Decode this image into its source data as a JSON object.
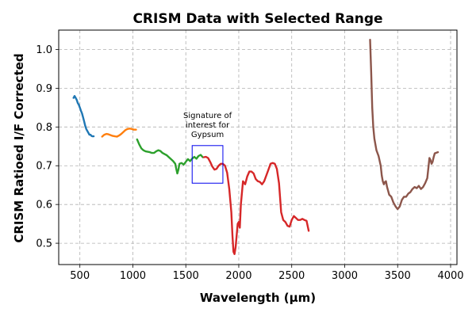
{
  "chart_data": {
    "type": "line",
    "title": "CRISM Data with Selected Range",
    "xlabel": "Wavelength (µm)",
    "ylabel": "CRISM Ratioed I/F Corrected",
    "xlim": [
      300,
      4060
    ],
    "ylim": [
      0.445,
      1.05
    ],
    "xticks": [
      500,
      1000,
      1500,
      2000,
      2500,
      3000,
      3500,
      4000
    ],
    "yticks": [
      0.5,
      0.6,
      0.7,
      0.8,
      0.9,
      1.0
    ],
    "grid": true,
    "annotation": {
      "lines": [
        "Signature of",
        "interest for",
        "Gypsum"
      ],
      "box": {
        "x": [
          1560,
          1850
        ],
        "y": [
          0.655,
          0.752
        ]
      },
      "box_color": "#0000ee"
    },
    "series": [
      {
        "color": "#1f77b4",
        "x": [
          440,
          450,
          460,
          470,
          480,
          490,
          500,
          510,
          520,
          530,
          540,
          550,
          560,
          570,
          580,
          590,
          600,
          610,
          620,
          630
        ],
        "y": [
          0.875,
          0.88,
          0.875,
          0.87,
          0.862,
          0.857,
          0.85,
          0.842,
          0.835,
          0.825,
          0.815,
          0.803,
          0.795,
          0.79,
          0.785,
          0.78,
          0.78,
          0.777,
          0.776,
          0.776
        ]
      },
      {
        "color": "#ff7f0e",
        "x": [
          710,
          730,
          750,
          770,
          790,
          810,
          830,
          850,
          870,
          890,
          910,
          930,
          950,
          970,
          990,
          1010,
          1030
        ],
        "y": [
          0.775,
          0.78,
          0.782,
          0.781,
          0.779,
          0.777,
          0.776,
          0.775,
          0.778,
          0.782,
          0.787,
          0.792,
          0.795,
          0.796,
          0.795,
          0.793,
          0.793
        ]
      },
      {
        "color": "#2ca02c",
        "x": [
          1040,
          1060,
          1080,
          1100,
          1120,
          1140,
          1160,
          1180,
          1200,
          1220,
          1240,
          1260,
          1280,
          1300,
          1320,
          1340,
          1360,
          1380,
          1400,
          1410,
          1420,
          1430,
          1440,
          1460,
          1480,
          1500,
          1520,
          1540,
          1560,
          1580,
          1600,
          1620,
          1640,
          1660
        ],
        "y": [
          0.768,
          0.755,
          0.745,
          0.74,
          0.737,
          0.736,
          0.735,
          0.733,
          0.733,
          0.737,
          0.74,
          0.738,
          0.733,
          0.73,
          0.727,
          0.722,
          0.717,
          0.712,
          0.705,
          0.692,
          0.68,
          0.69,
          0.705,
          0.707,
          0.703,
          0.71,
          0.717,
          0.712,
          0.718,
          0.723,
          0.718,
          0.725,
          0.728,
          0.722
        ]
      },
      {
        "color": "#d62728",
        "x": [
          1670,
          1690,
          1710,
          1730,
          1750,
          1770,
          1790,
          1810,
          1830,
          1850,
          1870,
          1890,
          1910,
          1930,
          1940,
          1950,
          1960,
          1970,
          1980,
          1990,
          2000,
          2010,
          2020,
          2040,
          2060,
          2080,
          2100,
          2120,
          2140,
          2160,
          2180,
          2200,
          2220,
          2240,
          2260,
          2280,
          2300,
          2320,
          2340,
          2360,
          2380,
          2400,
          2420,
          2440,
          2460,
          2480,
          2500,
          2520,
          2540,
          2560,
          2580,
          2600,
          2620,
          2640,
          2660
        ],
        "y": [
          0.722,
          0.723,
          0.72,
          0.71,
          0.698,
          0.69,
          0.692,
          0.7,
          0.705,
          0.705,
          0.7,
          0.682,
          0.64,
          0.58,
          0.52,
          0.478,
          0.472,
          0.49,
          0.52,
          0.55,
          0.555,
          0.54,
          0.6,
          0.66,
          0.652,
          0.672,
          0.685,
          0.685,
          0.68,
          0.666,
          0.66,
          0.658,
          0.652,
          0.66,
          0.675,
          0.69,
          0.705,
          0.707,
          0.705,
          0.692,
          0.655,
          0.58,
          0.56,
          0.555,
          0.545,
          0.543,
          0.56,
          0.57,
          0.565,
          0.56,
          0.56,
          0.563,
          0.56,
          0.558,
          0.532
        ]
      },
      {
        "color": "#8c564b",
        "x": [
          3240,
          3250,
          3260,
          3270,
          3280,
          3300,
          3320,
          3340,
          3350,
          3360,
          3370,
          3380,
          3390,
          3400,
          3420,
          3440,
          3460,
          3480,
          3500,
          3520,
          3540,
          3560,
          3580,
          3600,
          3620,
          3640,
          3660,
          3680,
          3700,
          3720,
          3740,
          3760,
          3780,
          3800,
          3810,
          3820,
          3830,
          3840,
          3850,
          3860,
          3880
        ],
        "y": [
          1.025,
          0.94,
          0.85,
          0.8,
          0.77,
          0.74,
          0.725,
          0.7,
          0.675,
          0.66,
          0.652,
          0.658,
          0.66,
          0.645,
          0.625,
          0.62,
          0.605,
          0.595,
          0.588,
          0.595,
          0.612,
          0.62,
          0.62,
          0.628,
          0.632,
          0.64,
          0.645,
          0.642,
          0.648,
          0.64,
          0.645,
          0.655,
          0.668,
          0.72,
          0.715,
          0.705,
          0.71,
          0.722,
          0.732,
          0.733,
          0.735
        ]
      }
    ]
  }
}
